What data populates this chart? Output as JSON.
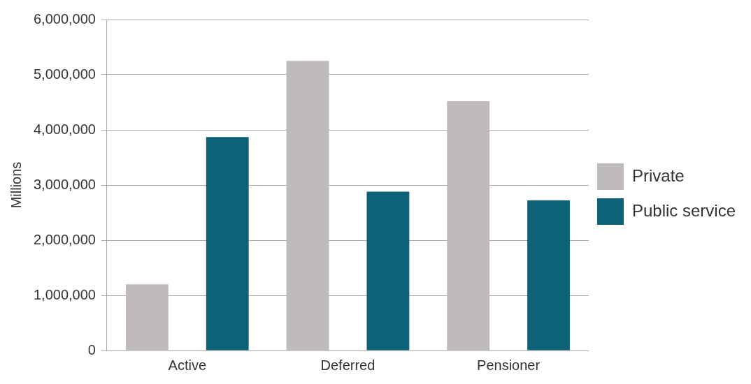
{
  "chart_data": {
    "type": "bar",
    "ylabel": "Millions",
    "categories": [
      "Active",
      "Deferred",
      "Pensioner"
    ],
    "series": [
      {
        "name": "Private",
        "color": "#bfbbba",
        "values": [
          1200000,
          5250000,
          4520000
        ]
      },
      {
        "name": "Public service",
        "color": "#0e6278",
        "values": [
          3870000,
          2880000,
          2720000
        ]
      }
    ],
    "ylim": [
      0,
      6000000
    ],
    "yticks": [
      {
        "value": 0,
        "label": "0"
      },
      {
        "value": 1000000,
        "label": "1,000,000"
      },
      {
        "value": 2000000,
        "label": "2,000,000"
      },
      {
        "value": 3000000,
        "label": "3,000,000"
      },
      {
        "value": 4000000,
        "label": "4,000,000"
      },
      {
        "value": 5000000,
        "label": "5,000,000"
      },
      {
        "value": 6000000,
        "label": "6,000,000"
      }
    ],
    "grid": "y",
    "legend": "right"
  }
}
